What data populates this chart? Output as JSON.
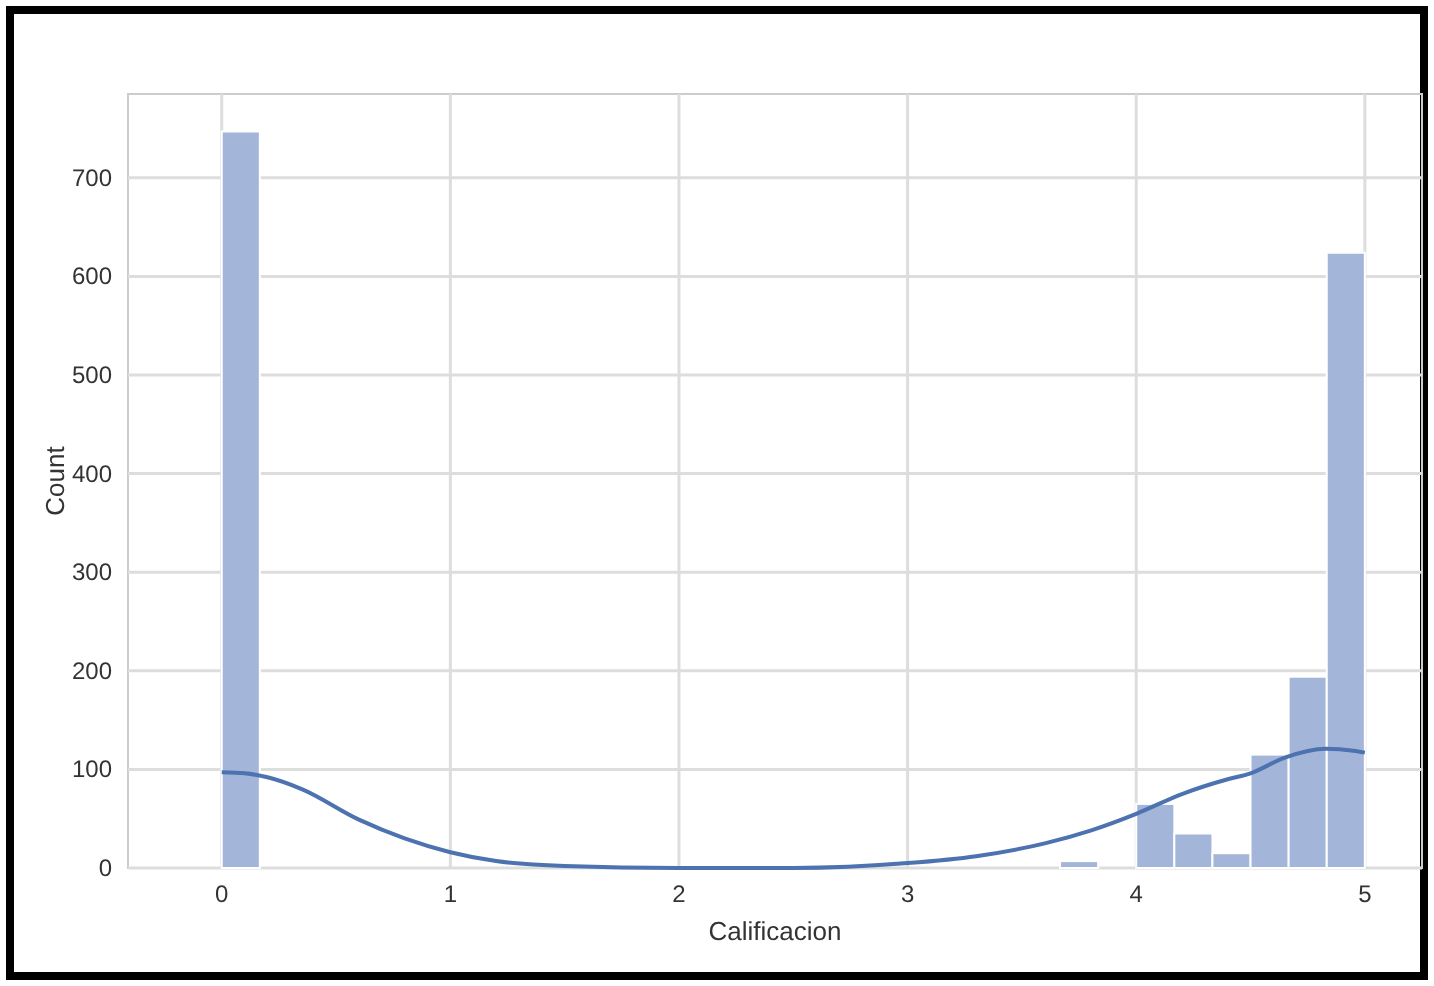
{
  "chart_data": {
    "type": "histogram",
    "xlabel": "Calificacion",
    "ylabel": "Count",
    "color": "#a3b6d9",
    "bins": [
      0,
      0.16667,
      0.33333,
      0.5,
      0.66667,
      0.83333,
      1,
      1.16667,
      1.33333,
      1.5,
      1.66667,
      1.83333,
      2,
      2.16667,
      2.33333,
      2.5,
      2.66667,
      2.83333,
      3,
      3.16667,
      3.33333,
      3.5,
      3.66667,
      3.83333,
      4,
      4.16667,
      4.33333,
      4.5,
      4.66667,
      4.83333,
      5
    ],
    "values": [
      747,
      0,
      0,
      0,
      0,
      0,
      0,
      0,
      0,
      0,
      0,
      0,
      0,
      0,
      0,
      0,
      0,
      0,
      0,
      0,
      0,
      0,
      7,
      0,
      65,
      35,
      15,
      115,
      194,
      624
    ],
    "series": [
      {
        "type": "line",
        "color": "#4c72b0",
        "x": [
          0,
          0.1,
          0.2,
          0.35,
          0.6,
          0.8,
          1,
          1.2,
          1.5,
          2,
          2.5,
          3,
          3.3,
          3.6,
          3.8,
          4,
          4.2,
          4.4,
          4.5,
          4.65,
          4.83,
          4.95,
          5
        ],
        "values": [
          97,
          96,
          92,
          80,
          49,
          30,
          16,
          7,
          2,
          0,
          0,
          5,
          12,
          25,
          38,
          55,
          75,
          90,
          96,
          112,
          121,
          119,
          117
        ]
      }
    ],
    "xlim": [
      -0.41,
      5.25
    ],
    "xticks": [
      0,
      1,
      2,
      3,
      4,
      5
    ],
    "ylim": [
      0,
      785
    ],
    "yticks": [
      0,
      100,
      200,
      300,
      400,
      500,
      600,
      700
    ],
    "grid": true
  }
}
